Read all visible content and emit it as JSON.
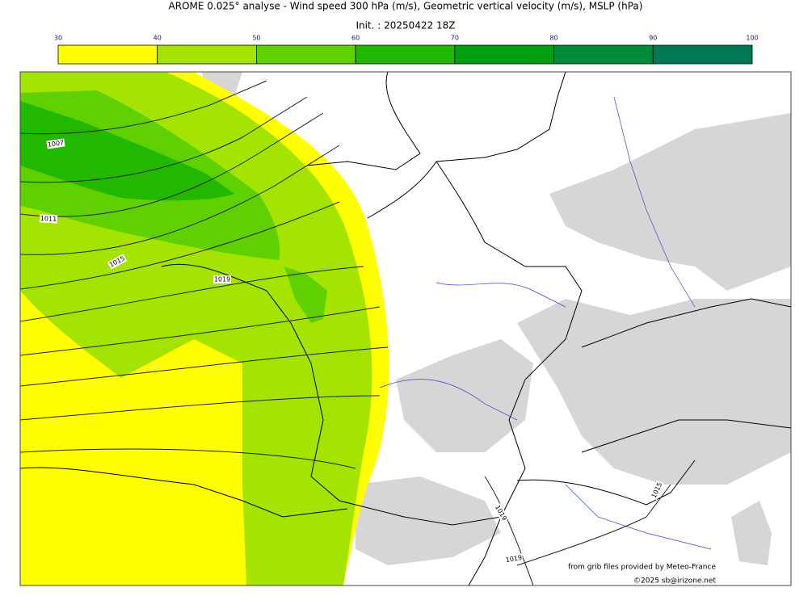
{
  "title": "AROME 0.025° analyse - Wind speed 300 hPa (m/s), Geometric vertical velocity (m/s), MSLP (hPa)",
  "subtitle": "Init. : 20250422 18Z",
  "colorbar": {
    "ticks": [
      30,
      40,
      50,
      60,
      70,
      80,
      90,
      100
    ],
    "colors": [
      "#ffff00",
      "#a5e300",
      "#5fd000",
      "#22b800",
      "#00a010",
      "#008b3a",
      "#007a55"
    ]
  },
  "isobar_labels": [
    "1007",
    "1011",
    "1015",
    "1019",
    "1015",
    "1019",
    "1019"
  ],
  "credits": [
    "from grib files provided by Meteo-France",
    "©2025 sb@irizone.net"
  ]
}
